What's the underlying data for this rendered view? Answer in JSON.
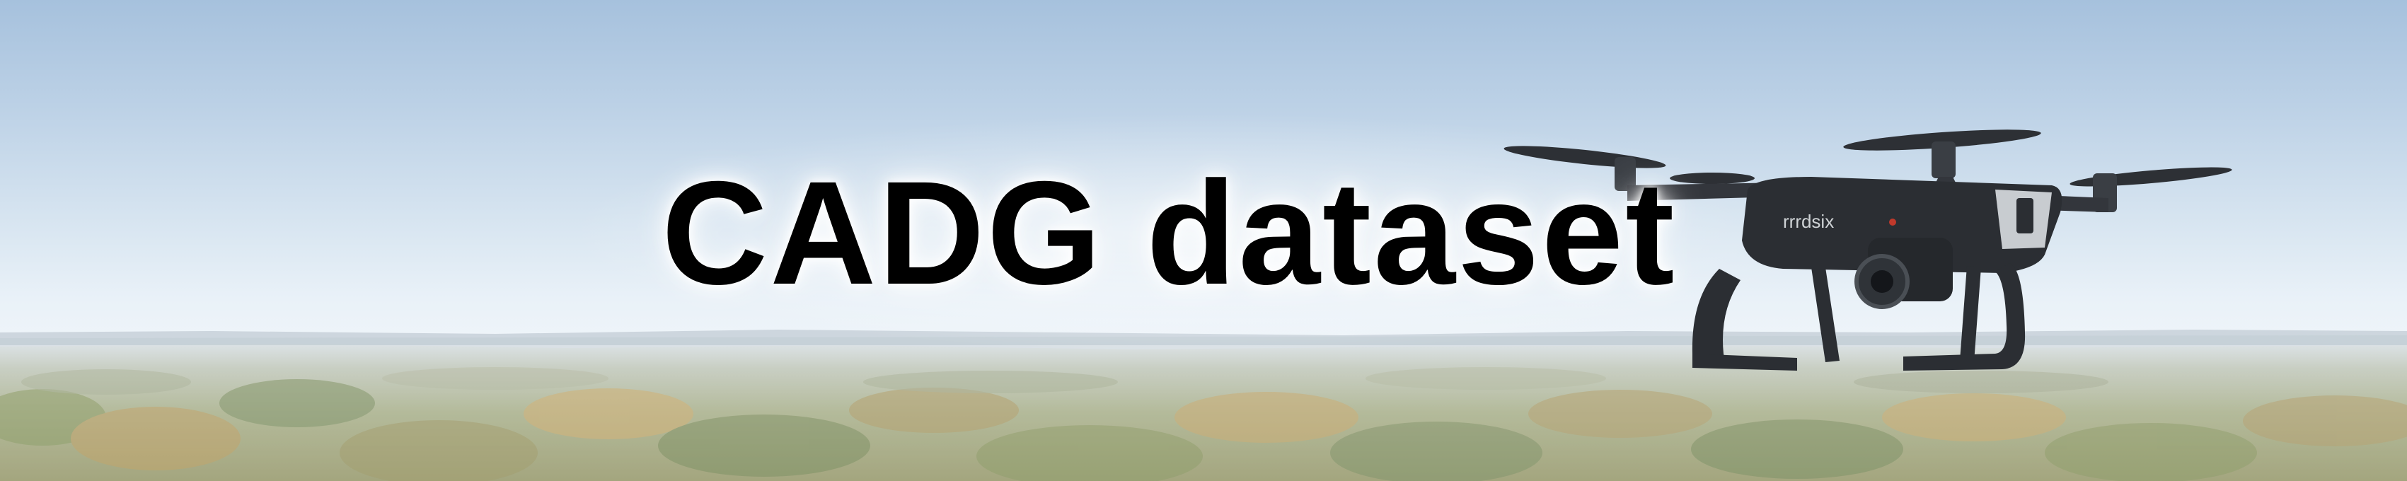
{
  "banner": {
    "title": "CADG dataset"
  },
  "colors": {
    "sky_top": "#a6c1dd",
    "sky_horizon": "#eef4f9",
    "forest_green": "#7c8a5c",
    "forest_autumn": "#b39a5a",
    "drone_body": "#2b2e33",
    "title_text": "#000000"
  },
  "icons": {
    "drone": "drone-icon"
  }
}
